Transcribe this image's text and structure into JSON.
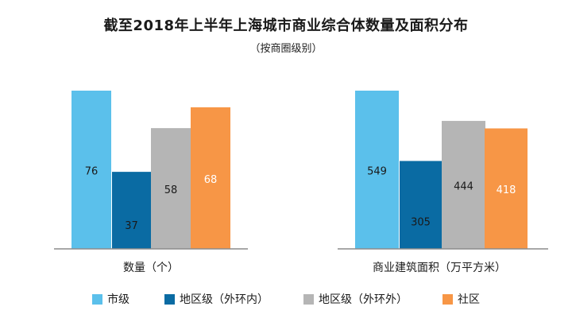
{
  "title": "截至2018年上半年上海城市商业综合体数量及面积分布",
  "subtitle": "（按商圈级别）",
  "legend": [
    {
      "label": "市级",
      "color": "#5BC0EB"
    },
    {
      "label": "地区级（外环内）",
      "color": "#0A6BA3"
    },
    {
      "label": "地区级（外环外）",
      "color": "#B5B5B5"
    },
    {
      "label": "社区",
      "color": "#F79646"
    }
  ],
  "chart_data": [
    {
      "type": "bar",
      "xlabel": "数量（个）",
      "categories": [
        "市级",
        "地区级（外环内）",
        "地区级（外环外）",
        "社区"
      ],
      "values": [
        76,
        37,
        58,
        68
      ],
      "ylim": [
        0,
        76
      ],
      "grid": false
    },
    {
      "type": "bar",
      "xlabel": "商业建筑面积（万平方米）",
      "categories": [
        "市级",
        "地区级（外环内）",
        "地区级（外环外）",
        "社区"
      ],
      "values": [
        549,
        305,
        444,
        418
      ],
      "ylim": [
        0,
        549
      ],
      "grid": false
    }
  ]
}
